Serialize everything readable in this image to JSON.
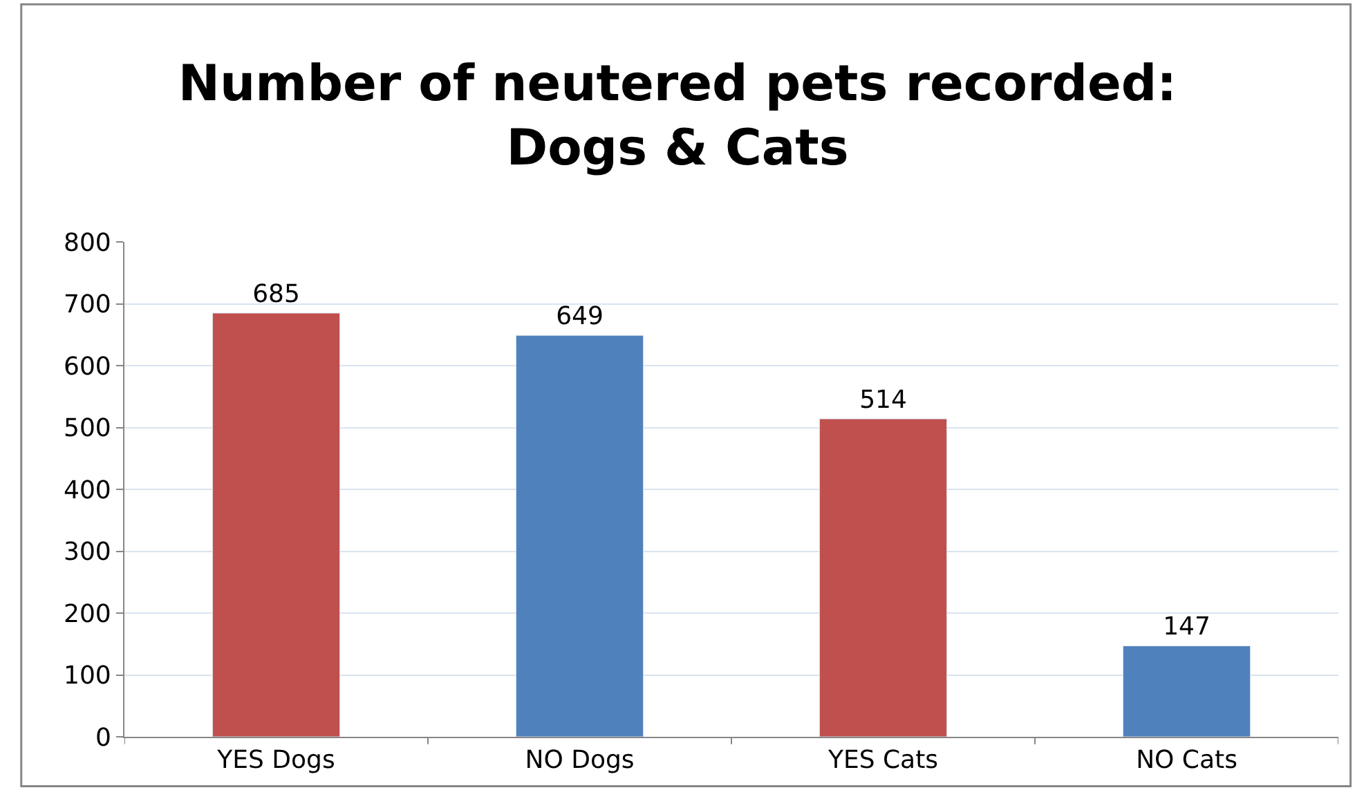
{
  "chart_data": {
    "type": "bar",
    "title": "Number of neutered pets recorded:\nDogs & Cats",
    "categories": [
      "YES Dogs",
      "NO Dogs",
      "YES Cats",
      "NO Cats"
    ],
    "values": [
      685,
      649,
      514,
      147
    ],
    "colors": [
      "#c0504d",
      "#4f81bd",
      "#c0504d",
      "#4f81bd"
    ],
    "data_labels": true,
    "ylim": [
      0,
      800
    ],
    "yticks": [
      0,
      100,
      200,
      300,
      400,
      500,
      600,
      700,
      800
    ],
    "grid": "y"
  }
}
